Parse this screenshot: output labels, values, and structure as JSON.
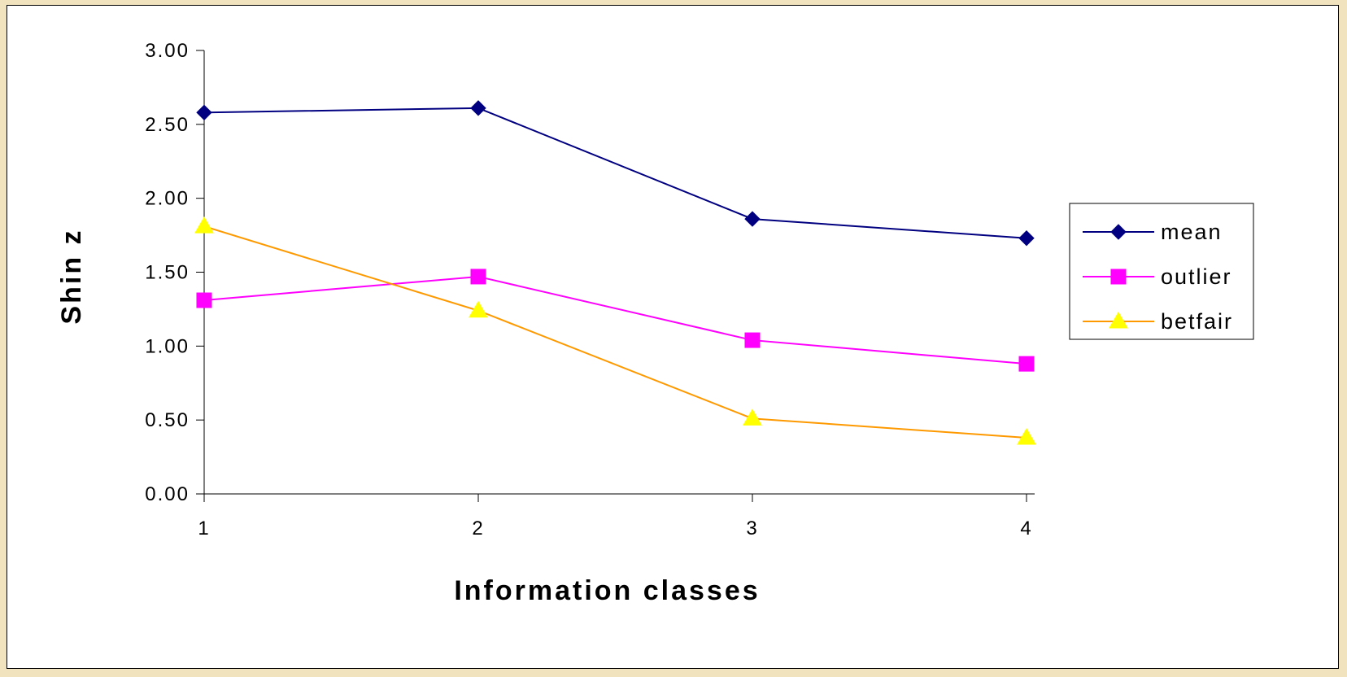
{
  "chart_data": {
    "type": "line",
    "title": "",
    "xlabel": "Information classes",
    "ylabel": "Shin z",
    "categories": [
      "1",
      "2",
      "3",
      "4"
    ],
    "ylim": [
      0,
      3
    ],
    "ytick_labels": [
      "0.00",
      "0.50",
      "1.00",
      "1.50",
      "2.00",
      "2.50",
      "3.00"
    ],
    "grid": false,
    "legend_position": "right",
    "series": [
      {
        "name": "mean",
        "values": [
          2.58,
          2.61,
          1.86,
          1.73
        ],
        "color": "#000080",
        "marker": "diamond",
        "marker_color": "#000080"
      },
      {
        "name": "outlier",
        "values": [
          1.31,
          1.47,
          1.04,
          0.88
        ],
        "color": "#ff00ff",
        "marker": "square",
        "marker_color": "#ff00ff"
      },
      {
        "name": "betfair",
        "values": [
          1.81,
          1.24,
          0.51,
          0.38
        ],
        "color": "#ff9900",
        "marker": "triangle",
        "marker_color": "#ffff00"
      }
    ]
  }
}
